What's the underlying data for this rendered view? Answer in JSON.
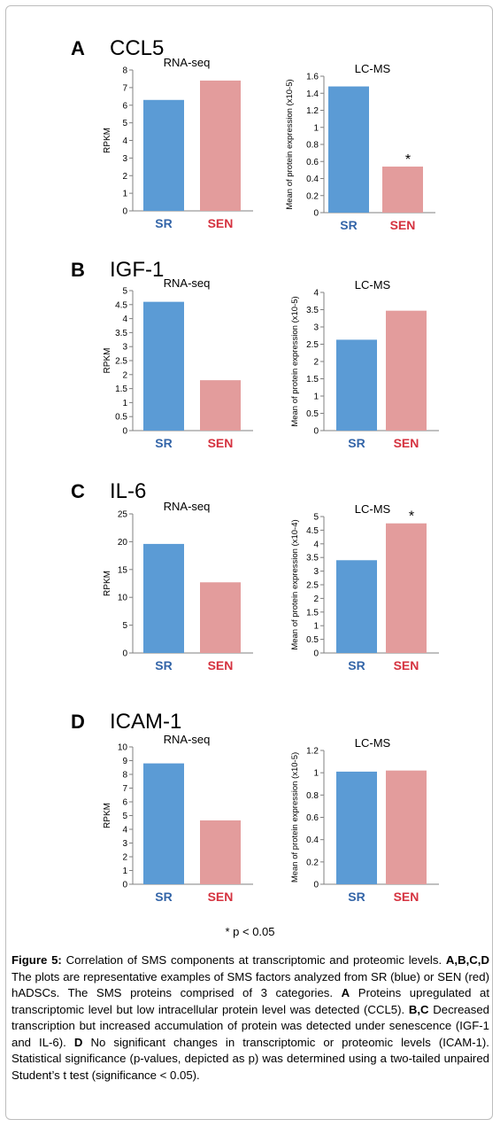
{
  "chart_data": [
    {
      "panel": "A",
      "gene": "CCL5",
      "charts": [
        {
          "type": "bar",
          "title": "RNA-seq",
          "ylabel": "RPKM",
          "categories": [
            "SR",
            "SEN"
          ],
          "values": [
            6.3,
            7.4
          ],
          "ylim": [
            0,
            8
          ],
          "ticks": [
            "0",
            "1",
            "2",
            "3",
            "4",
            "5",
            "6",
            "7",
            "8"
          ],
          "annotations": [
            "",
            ""
          ]
        },
        {
          "type": "bar",
          "title": "LC-MS",
          "ylabel": "Mean of protein expression (x10-5)",
          "categories": [
            "SR",
            "SEN"
          ],
          "values": [
            1.48,
            0.54
          ],
          "ylim": [
            0,
            1.6
          ],
          "ticks": [
            "0",
            "0.2",
            "0.4",
            "0.6",
            "0.8",
            "1",
            "1.2",
            "1.4",
            "1.6"
          ],
          "annotations": [
            "",
            "*"
          ]
        }
      ]
    },
    {
      "panel": "B",
      "gene": "IGF-1",
      "charts": [
        {
          "type": "bar",
          "title": "RNA-seq",
          "ylabel": "RPKM",
          "categories": [
            "SR",
            "SEN"
          ],
          "values": [
            4.6,
            1.8
          ],
          "ylim": [
            0,
            5
          ],
          "ticks": [
            "0",
            "0.5",
            "1",
            "1.5",
            "2",
            "2.5",
            "3",
            "3.5",
            "4",
            "4.5",
            "5"
          ],
          "annotations": [
            "",
            ""
          ]
        },
        {
          "type": "bar",
          "title": "LC-MS",
          "ylabel": "Mean of protein expression (x10-5)",
          "categories": [
            "SR",
            "SEN"
          ],
          "values": [
            2.63,
            3.47
          ],
          "ylim": [
            0,
            4
          ],
          "ticks": [
            "0",
            "0.5",
            "1",
            "1.5",
            "2",
            "2.5",
            "3",
            "3.5",
            "4"
          ],
          "annotations": [
            "",
            ""
          ]
        }
      ]
    },
    {
      "panel": "C",
      "gene": "IL-6",
      "charts": [
        {
          "type": "bar",
          "title": "RNA-seq",
          "ylabel": "RPKM",
          "categories": [
            "SR",
            "SEN"
          ],
          "values": [
            19.6,
            12.7
          ],
          "ylim": [
            0,
            25
          ],
          "ticks": [
            "0",
            "5",
            "10",
            "15",
            "20",
            "25"
          ],
          "annotations": [
            "",
            ""
          ]
        },
        {
          "type": "bar",
          "title": "LC-MS",
          "ylabel": "Mean of protein expression (x10-4)",
          "categories": [
            "SR",
            "SEN"
          ],
          "values": [
            3.4,
            4.75
          ],
          "ylim": [
            0,
            5
          ],
          "ticks": [
            "0",
            "0.5",
            "1",
            "1.5",
            "2",
            "2.5",
            "3",
            "3.5",
            "4",
            "4.5",
            "5"
          ],
          "annotations": [
            "",
            "*"
          ]
        }
      ]
    },
    {
      "panel": "D",
      "gene": "ICAM-1",
      "charts": [
        {
          "type": "bar",
          "title": "RNA-seq",
          "ylabel": "RPKM",
          "categories": [
            "SR",
            "SEN"
          ],
          "values": [
            8.8,
            4.65
          ],
          "ylim": [
            0,
            10
          ],
          "ticks": [
            "0",
            "1",
            "2",
            "3",
            "4",
            "5",
            "6",
            "7",
            "8",
            "9",
            "10"
          ],
          "annotations": [
            "",
            ""
          ]
        },
        {
          "type": "bar",
          "title": "LC-MS",
          "ylabel": "Mean of protein expression (x10-5)",
          "categories": [
            "SR",
            "SEN"
          ],
          "values": [
            1.01,
            1.02
          ],
          "ylim": [
            0,
            1.2
          ],
          "ticks": [
            "0",
            "0.2",
            "0.4",
            "0.6",
            "0.8",
            "1",
            "1.2"
          ],
          "annotations": [
            "",
            ""
          ]
        }
      ]
    }
  ],
  "colors": {
    "SR": "#5b9bd5",
    "SEN": "#e39c9c",
    "SR_label": "#3465a8",
    "SEN_label": "#d5323f"
  },
  "footnote": "* p < 0.05",
  "caption": {
    "label": "Figure 5:",
    "title": " Correlation of SMS components at transcriptomic and proteomic levels.",
    "p1_bold": "A,B,C,D",
    "p1": " The plots are representative examples of SMS factors analyzed from SR (blue) or SEN (red) hADSCs. The SMS proteins comprised of 3 categories.",
    "p2_bold": "A",
    "p2": " Proteins upregulated at transcriptomic level but low intracellular protein level was detected (CCL5).",
    "p3_bold": "B,C",
    "p3": " Decreased transcription but increased accumulation of protein was detected under senescence (IGF-1 and IL-6).",
    "p4_bold": "D",
    "p4": " No significant changes in transcriptomic or proteomic levels (ICAM-1). Statistical significance (p-values, depicted as p) was determined using a two-tailed unpaired Student’s t test (significance < 0.05)."
  }
}
